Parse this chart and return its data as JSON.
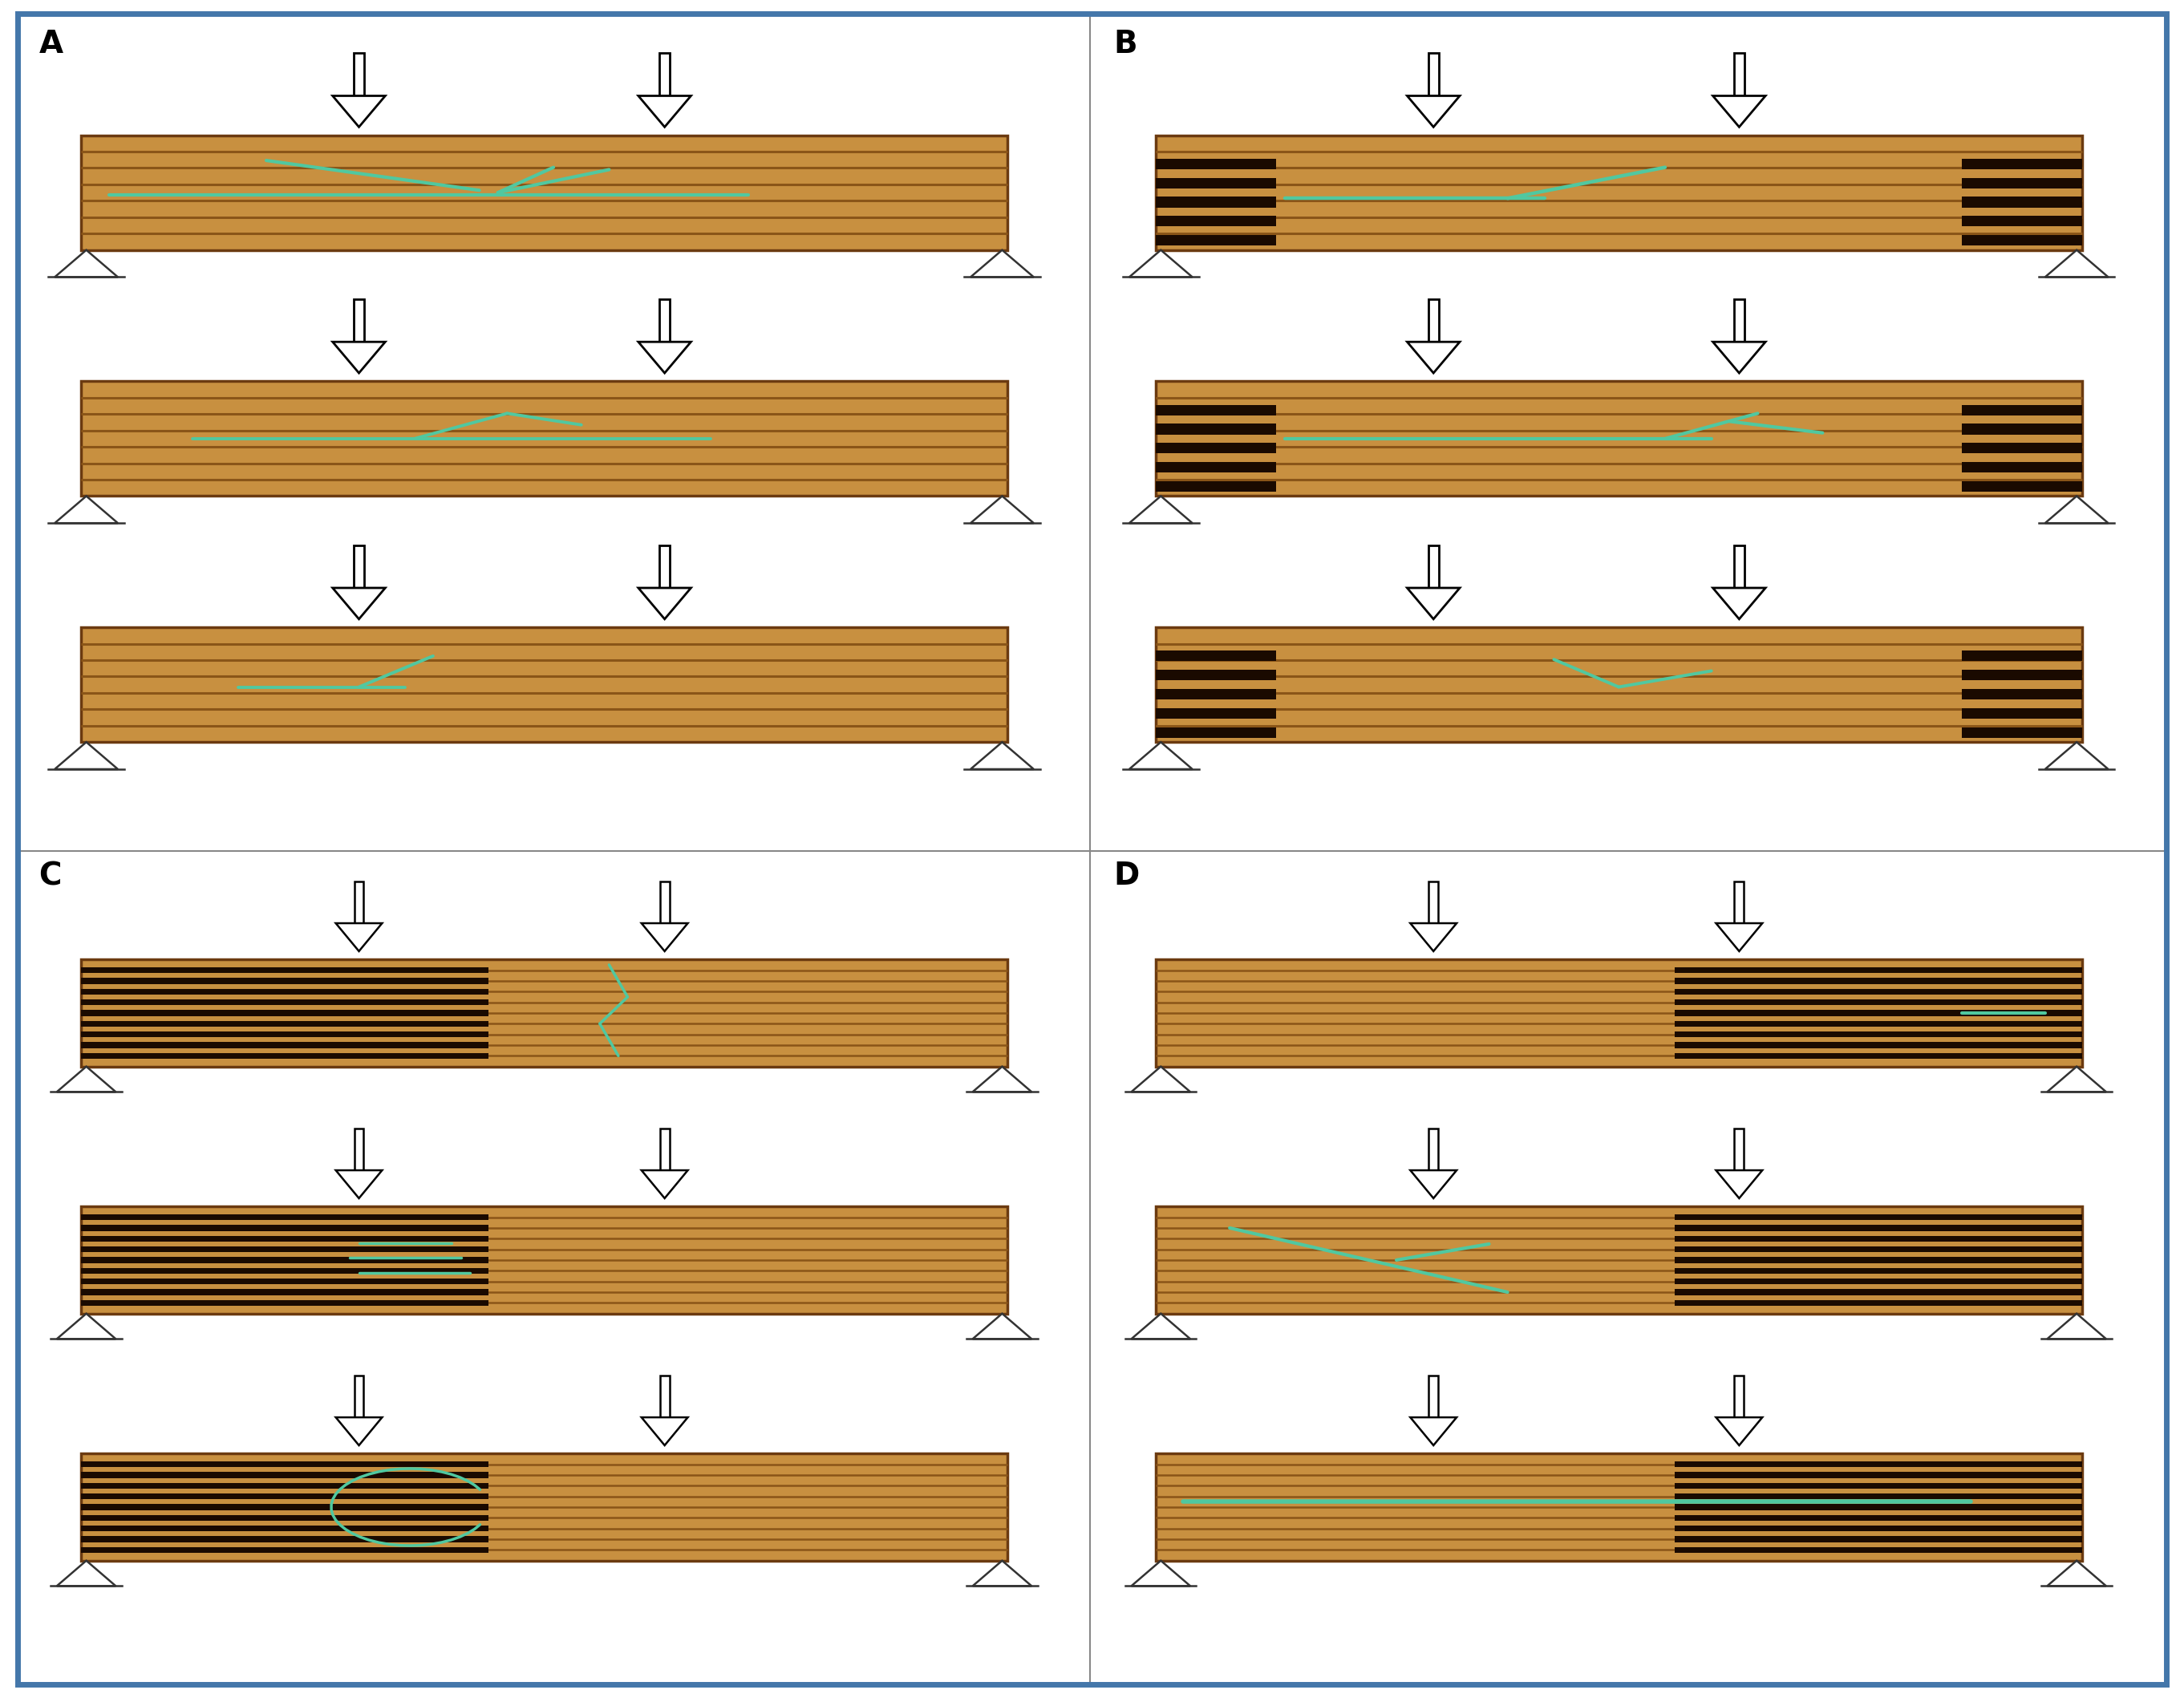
{
  "fig_width": 27.23,
  "fig_height": 21.17,
  "background": "#ffffff",
  "border_color": "#4477aa",
  "beam_fill": "#c89040",
  "beam_edge": "#6b3a10",
  "grain_color": "#8a5518",
  "notch_color": "#1a0a00",
  "crack_color": "#50c8a0",
  "label_fontsize": 28,
  "panels": {
    "A": {
      "notch_left": false,
      "notch_right": false,
      "n_laminations": 7
    },
    "B": {
      "notch_left": true,
      "notch_right": true,
      "n_laminations": 7
    },
    "C": {
      "notch_left": true,
      "notch_right": false,
      "n_laminations": 10
    },
    "D": {
      "notch_left": false,
      "notch_right": false,
      "n_laminations": 10
    }
  }
}
